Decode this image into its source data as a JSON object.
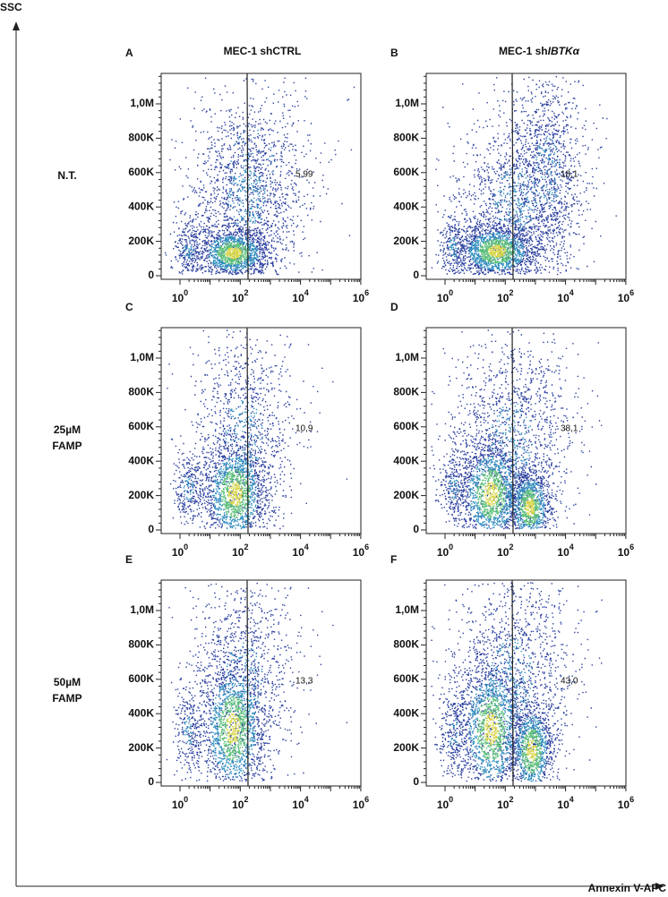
{
  "y_axis_label": "SSC",
  "x_axis_label": "Annexin V-APC",
  "columns": [
    {
      "title": "MEC-1 shCTRL"
    },
    {
      "prefix": "MEC-1 sh",
      "italic": "IBTKα"
    }
  ],
  "rows": [
    [
      "N.T."
    ],
    [
      "25µM",
      "FAMP"
    ],
    [
      "50µM",
      "FAMP"
    ]
  ],
  "y_ticks": [
    "0",
    "200K",
    "400K",
    "600K",
    "800K",
    "1,0M"
  ],
  "x_ticks": [
    {
      "base": "10",
      "exponent": "0"
    },
    {
      "base": "10",
      "exponent": "2"
    },
    {
      "base": "10",
      "exponent": "4"
    },
    {
      "base": "10",
      "exponent": "6"
    }
  ],
  "panels": [
    {
      "letter": "A",
      "gate": "5,99"
    },
    {
      "letter": "B",
      "gate": "18,1"
    },
    {
      "letter": "C",
      "gate": "10,9"
    },
    {
      "letter": "D",
      "gate": "38,1"
    },
    {
      "letter": "E",
      "gate": "13,3"
    },
    {
      "letter": "F",
      "gate": "43,0"
    }
  ]
}
